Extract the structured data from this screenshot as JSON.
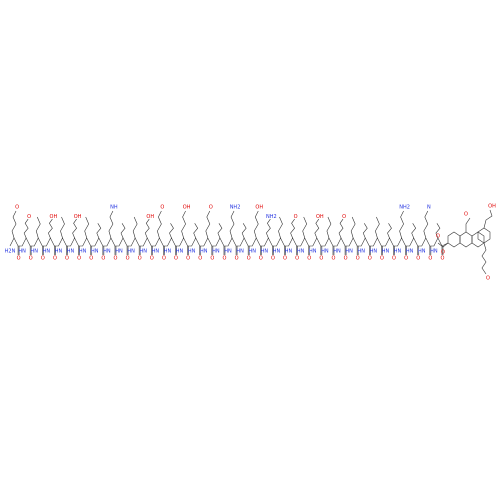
{
  "molecule": {
    "residues": [
      {
        "carbonyl": "O",
        "amide": "H2N",
        "side": "O"
      },
      {
        "carbonyl": "O",
        "amide": "HN",
        "side": "O"
      },
      {
        "carbonyl": "O",
        "amide": "HN"
      },
      {
        "carbonyl": "O",
        "amide": "HN",
        "side": "OH"
      },
      {
        "carbonyl": "O",
        "amide": "HN"
      },
      {
        "carbonyl": "O",
        "amide": "HN",
        "side": "OH"
      },
      {
        "carbonyl": "O",
        "amide": "HN"
      },
      {
        "carbonyl": "O",
        "amide": "HN"
      },
      {
        "carbonyl": "O",
        "amide": "HN",
        "side": "NH"
      },
      {
        "carbonyl": "O",
        "amide": "HN"
      },
      {
        "carbonyl": "O",
        "amide": "HN"
      },
      {
        "carbonyl": "O",
        "amide": "HN",
        "side": "OH"
      },
      {
        "carbonyl": "O",
        "amide": "HN",
        "side": "O"
      },
      {
        "carbonyl": "O",
        "amide": "HN"
      },
      {
        "carbonyl": "O",
        "amide": "HN",
        "side": "OH"
      },
      {
        "carbonyl": "O",
        "amide": "HN"
      },
      {
        "carbonyl": "O",
        "amide": "HN",
        "side": "O"
      },
      {
        "carbonyl": "O",
        "amide": "HN"
      },
      {
        "carbonyl": "O",
        "amide": "HN",
        "side": "NH2"
      },
      {
        "carbonyl": "O",
        "amide": "HN"
      },
      {
        "carbonyl": "O",
        "amide": "HN",
        "side": "OH"
      },
      {
        "carbonyl": "O",
        "amide": "HN",
        "side": "NH2"
      },
      {
        "carbonyl": "O",
        "amide": "HN"
      },
      {
        "carbonyl": "O",
        "amide": "HN",
        "side": "O"
      },
      {
        "carbonyl": "O",
        "amide": "HN"
      },
      {
        "carbonyl": "O",
        "amide": "HN",
        "side": "OH"
      },
      {
        "carbonyl": "O",
        "amide": "HN"
      },
      {
        "carbonyl": "O",
        "amide": "HN",
        "side": "O"
      },
      {
        "carbonyl": "O",
        "amide": "HN"
      },
      {
        "carbonyl": "O",
        "amide": "HN"
      },
      {
        "carbonyl": "O",
        "amide": "HN"
      },
      {
        "carbonyl": "O",
        "amide": "HN"
      },
      {
        "carbonyl": "O",
        "amide": "HN",
        "side": "NH2"
      },
      {
        "carbonyl": "O",
        "amide": "HN"
      },
      {
        "carbonyl": "O",
        "amide": "HN",
        "side": "N"
      },
      {
        "carbonyl": "O",
        "amide": "HN"
      }
    ],
    "terminus": {
      "labels": [
        "O",
        "O",
        "OH",
        "O",
        "O"
      ]
    }
  }
}
